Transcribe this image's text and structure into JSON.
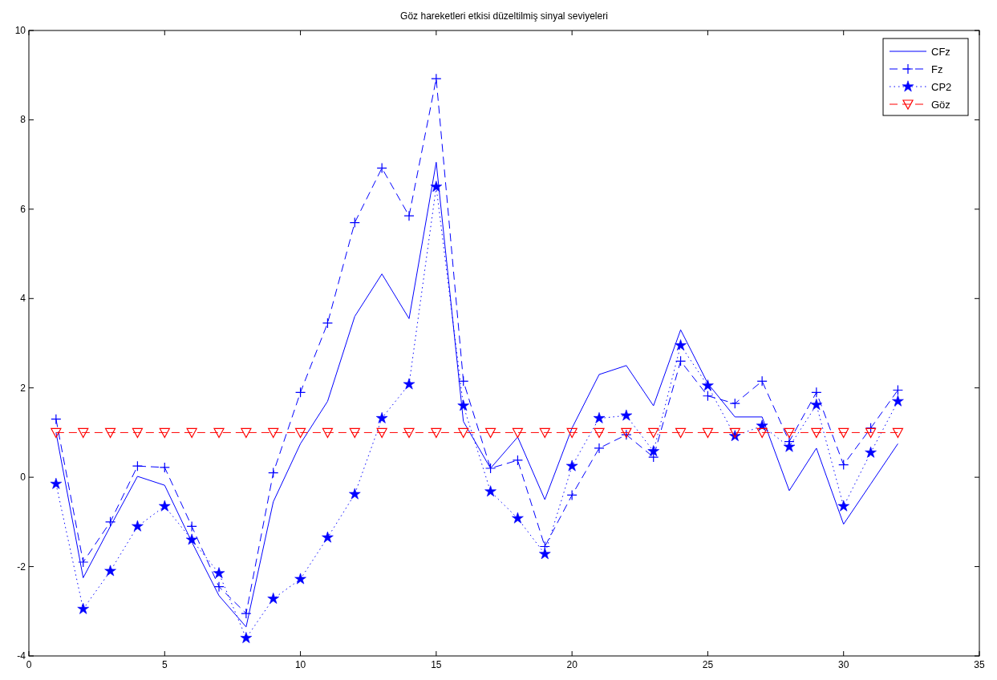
{
  "chart_data": {
    "type": "line",
    "title": "Göz hareketleri etkisi düzeltilmiş sinyal seviyeleri",
    "x": [
      1,
      2,
      3,
      4,
      5,
      6,
      7,
      8,
      9,
      10,
      11,
      12,
      13,
      14,
      15,
      16,
      17,
      18,
      19,
      20,
      21,
      22,
      23,
      24,
      25,
      26,
      27,
      28,
      29,
      30,
      31,
      32
    ],
    "xlim": [
      0,
      35
    ],
    "xticks": [
      0,
      5,
      10,
      15,
      20,
      25,
      30,
      35
    ],
    "ylim": [
      -4,
      10
    ],
    "yticks": [
      -4,
      -2,
      0,
      2,
      4,
      6,
      8,
      10
    ],
    "grid": false,
    "legend": "top right",
    "series": [
      {
        "name": "CFz",
        "color": "#0000ff",
        "line_style": "solid",
        "marker": "none",
        "values": [
          1.0,
          -2.25,
          -1.1,
          0.02,
          -0.18,
          -1.45,
          -2.65,
          -3.35,
          -0.55,
          0.75,
          1.7,
          3.6,
          4.55,
          3.55,
          7.05,
          1.25,
          0.2,
          0.9,
          -0.5,
          1.1,
          2.3,
          2.5,
          1.6,
          3.3,
          2.1,
          1.35,
          1.35,
          -0.3,
          0.65,
          -1.05,
          -0.15,
          0.75
        ]
      },
      {
        "name": "Fz",
        "color": "#0000ff",
        "line_style": "dashed",
        "marker": "cross",
        "values": [
          1.3,
          -1.9,
          -1.0,
          0.25,
          0.22,
          -1.1,
          -2.45,
          -3.05,
          0.1,
          1.9,
          3.45,
          5.7,
          6.92,
          5.85,
          8.92,
          2.15,
          0.2,
          0.38,
          -1.55,
          -0.4,
          0.65,
          0.95,
          0.45,
          2.6,
          1.82,
          1.65,
          2.15,
          0.8,
          1.9,
          0.28,
          1.1,
          1.95
        ]
      },
      {
        "name": "CP2",
        "color": "#0000ff",
        "line_style": "dotted",
        "marker": "star",
        "values": [
          -0.15,
          -2.95,
          -2.1,
          -1.1,
          -0.65,
          -1.4,
          -2.15,
          -3.6,
          -2.72,
          -2.28,
          -1.35,
          -0.38,
          1.32,
          2.08,
          6.5,
          1.6,
          -0.32,
          -0.92,
          -1.72,
          0.25,
          1.32,
          1.38,
          0.58,
          2.95,
          2.05,
          0.92,
          1.15,
          0.68,
          1.62,
          -0.65,
          0.55,
          1.7
        ]
      },
      {
        "name": "Göz",
        "color": "#ff0000",
        "line_style": "dashed",
        "marker": "triangle",
        "values": [
          1,
          1,
          1,
          1,
          1,
          1,
          1,
          1,
          1,
          1,
          1,
          1,
          1,
          1,
          1,
          1,
          1,
          1,
          1,
          1,
          1,
          1,
          1,
          1,
          1,
          1,
          1,
          1,
          1,
          1,
          1,
          1
        ]
      }
    ]
  }
}
